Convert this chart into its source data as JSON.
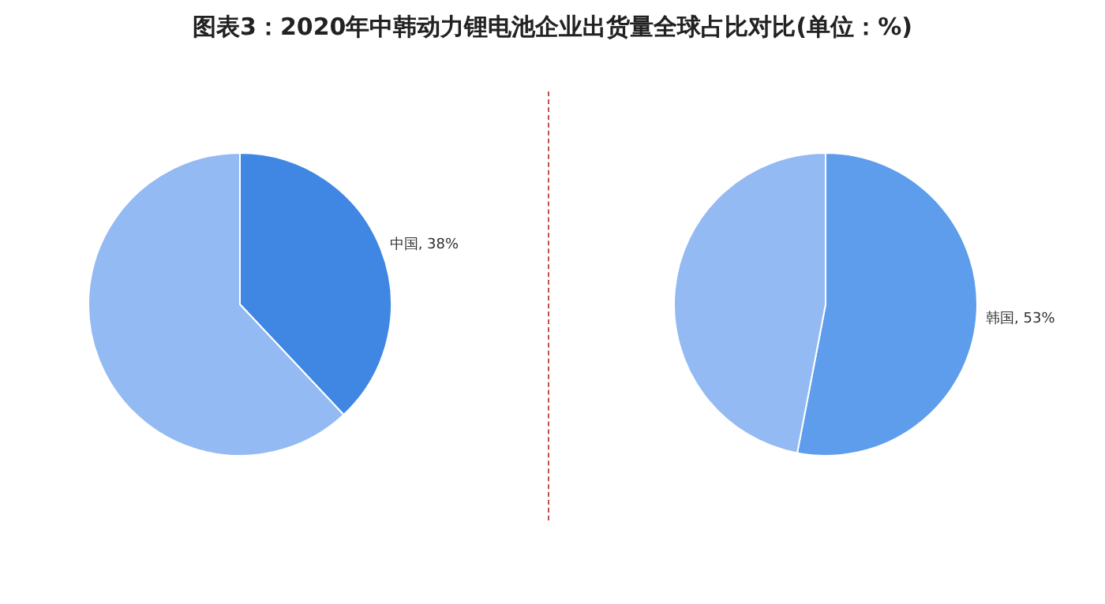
{
  "chart_data": [
    {
      "type": "pie",
      "title": "图表3：2020年中韩动力锂电池企业出货量全球占比对比(单位：%)",
      "categories": [
        "中国",
        null
      ],
      "values": [
        38,
        62
      ],
      "colors": [
        "#3f87e2",
        "#93baf2"
      ],
      "value_labels": [
        "38%",
        null
      ]
    },
    {
      "type": "pie",
      "categories": [
        "韩国",
        null
      ],
      "values": [
        53,
        47
      ],
      "colors": [
        "#5e9deb",
        "#93baf2"
      ],
      "value_labels": [
        "53%",
        null
      ]
    }
  ]
}
